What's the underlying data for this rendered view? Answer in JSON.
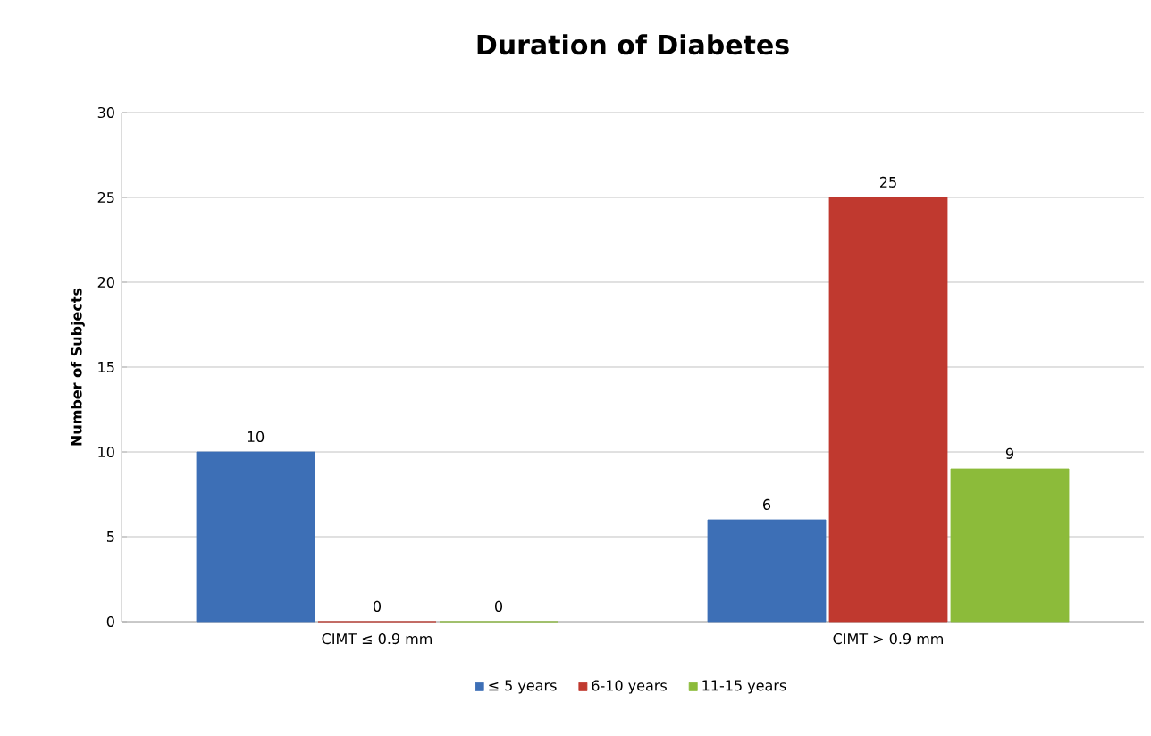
{
  "chart_data": {
    "type": "bar",
    "title": "Duration of Diabetes",
    "ylabel": "Number of Subjects",
    "categories": [
      "CIMT ≤ 0.9 mm",
      "CIMT > 0.9 mm"
    ],
    "series": [
      {
        "name": "≤ 5 years",
        "color": "#3d6fb6",
        "values": [
          10,
          6
        ]
      },
      {
        "name": "6-10 years",
        "color": "#c0392f",
        "values": [
          0,
          25
        ]
      },
      {
        "name": "11-15 years",
        "color": "#8cbb3a",
        "values": [
          0,
          9
        ]
      }
    ],
    "ylim": [
      0,
      30
    ],
    "yticks": [
      0,
      5,
      10,
      15,
      20,
      25,
      30
    ],
    "grid": "y",
    "legend": "bottom",
    "data_labels": true
  }
}
